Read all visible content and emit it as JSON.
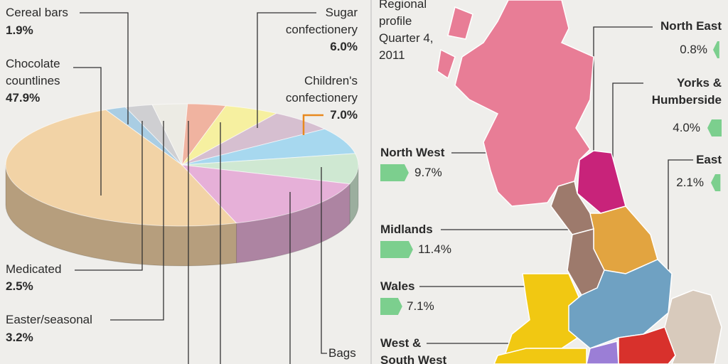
{
  "chart_data": [
    {
      "type": "pie",
      "categories": [
        "Chocolate countlines",
        "Cereal bars",
        "Medicated",
        "Easter/seasonal",
        null,
        null,
        "Sugar confectionery",
        "Children's confectionery",
        "Bags",
        null
      ],
      "values": [
        47.9,
        1.9,
        2.5,
        3.2,
        3.5,
        5.0,
        6.0,
        7.0,
        8.0,
        15.0
      ],
      "value_labels": [
        "47.9%",
        "1.9%",
        "2.5%",
        "3.2%",
        null,
        null,
        "6.0%",
        "7.0%",
        null,
        null
      ],
      "colors": [
        "#f2d3a6",
        "#a9cde3",
        "#cfcfd2",
        "#ecebe4",
        "#f0b3a0",
        "#f6f0a0",
        "#d6bfd0",
        "#a7d8ef",
        "#cfe8d2",
        "#e6b0d8"
      ]
    }
  ],
  "map": {
    "title": "Regional profile Quarter 4, 2011",
    "regions": [
      {
        "name": "North East",
        "value": 0.8,
        "value_label": "0.8%"
      },
      {
        "name": "Yorks & Humberside",
        "value": 4.0,
        "value_label": "4.0%"
      },
      {
        "name": "East",
        "value": 2.1,
        "value_label": "2.1%"
      },
      {
        "name": "North West",
        "value": 9.7,
        "value_label": "9.7%"
      },
      {
        "name": "Midlands",
        "value": 11.4,
        "value_label": "11.4%"
      },
      {
        "name": "Wales",
        "value": 7.1,
        "value_label": "7.1%"
      },
      {
        "name": "West & South West"
      }
    ]
  }
}
